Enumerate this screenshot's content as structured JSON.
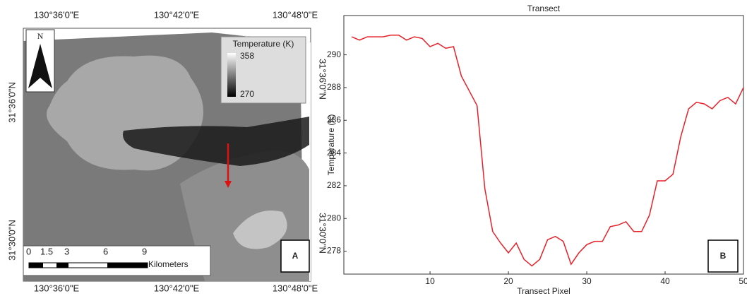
{
  "map": {
    "panel_label": "A",
    "north": "N",
    "legend_title": "Temperature (K)",
    "legend_max": "358",
    "legend_min": "270",
    "scale_labels": [
      "0",
      "1.5",
      "3",
      "6",
      "9"
    ],
    "scale_unit": "Kilometers",
    "top_lon_labels": [
      "130°36'0\"E",
      "130°42'0\"E",
      "130°48'0\"E"
    ],
    "bottom_lon_labels": [
      "130°36'0\"E",
      "130°42'0\"E",
      "130°48'0\"E"
    ],
    "left_lat_labels": [
      "31°36'0\"N",
      "31°30'0\"N"
    ],
    "right_lat_labels": [
      "31°36'0\"N",
      "31°30'0\"N"
    ]
  },
  "chart_data": {
    "type": "line",
    "title": "Transect",
    "x_label": "Transect Pixel",
    "y_label": "Temperature (K)",
    "panel_label": "B",
    "color": "#e8202a",
    "x": [
      0,
      1,
      2,
      3,
      4,
      5,
      6,
      7,
      8,
      9,
      10,
      11,
      12,
      13,
      14,
      15,
      16,
      17,
      18,
      19,
      20,
      21,
      22,
      23,
      24,
      25,
      26,
      27,
      28,
      29,
      30,
      31,
      32,
      33,
      34,
      35,
      36,
      37,
      38,
      39,
      40,
      41,
      42,
      43,
      44,
      45,
      46,
      47,
      48,
      49,
      50
    ],
    "values": [
      291.1,
      290.9,
      291.1,
      291.1,
      291.1,
      291.2,
      291.2,
      290.9,
      291.1,
      291.0,
      290.5,
      290.7,
      290.4,
      290.5,
      288.7,
      287.8,
      286.9,
      281.8,
      279.2,
      278.5,
      277.9,
      278.5,
      277.5,
      277.1,
      277.5,
      278.7,
      278.9,
      278.6,
      277.2,
      277.9,
      278.4,
      278.6,
      278.6,
      279.5,
      279.6,
      279.8,
      279.2,
      279.2,
      280.2,
      282.3,
      282.3,
      282.7,
      285.0,
      286.7,
      287.1,
      287.0,
      286.7,
      287.2,
      287.4,
      287.0,
      288.0
    ],
    "xlim": [
      -1,
      50
    ],
    "xticks": [
      10,
      20,
      30,
      40,
      50
    ],
    "ylim": [
      276.6,
      292.4
    ],
    "yticks": [
      278,
      280,
      282,
      284,
      286,
      288,
      290
    ]
  }
}
